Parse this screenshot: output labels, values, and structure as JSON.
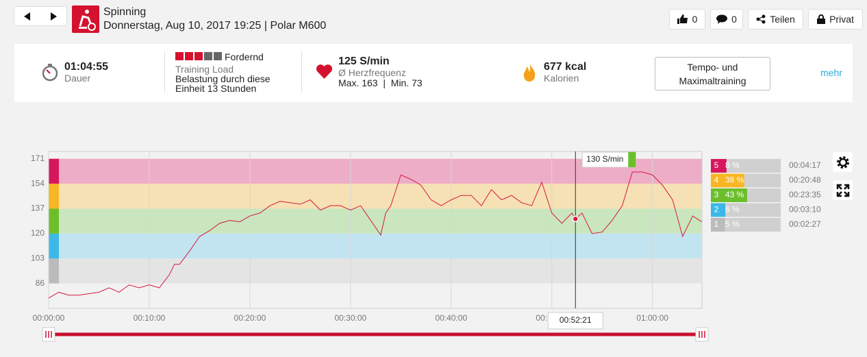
{
  "header": {
    "sport": "Spinning",
    "subtitle": "Donnerstag, Aug 10, 2017 19:25 | Polar M600",
    "likes": "0",
    "comments": "0",
    "share": "Teilen",
    "privacy": "Privat"
  },
  "summary": {
    "duration": "01:04:55",
    "duration_label": "Dauer",
    "load_level": "Fordernd",
    "load_label": "Training Load",
    "load_text": "Belastung durch diese Einheit 13 Stunden",
    "hr_value": "125 S/min",
    "hr_label": "Ø Herzfrequenz",
    "hr_minmax": "Max. 163  |  Min. 73",
    "calories": "677 kcal",
    "calories_label": "Kalorien",
    "benefit": "Tempo- und Maximaltraining",
    "more": "mehr"
  },
  "chart_data": {
    "type": "line",
    "x": [
      0,
      1,
      2,
      3,
      4,
      5,
      6,
      7,
      8,
      9,
      10,
      11,
      12,
      12.5,
      13,
      14,
      15,
      16,
      17,
      18,
      19,
      20,
      21,
      22,
      23,
      24,
      25,
      26,
      27,
      28,
      29,
      30,
      31,
      32,
      33,
      33.5,
      34,
      35,
      36,
      37,
      38,
      39,
      40,
      41,
      42,
      43,
      44,
      45,
      46,
      47,
      48,
      49,
      50,
      51,
      52,
      52.35,
      53,
      54,
      55,
      56,
      57,
      58,
      59,
      60,
      61,
      62,
      63,
      64,
      64.9
    ],
    "series": [
      {
        "name": "Herzfrequenz",
        "color": "#d7173f",
        "values": [
          76,
          80,
          78,
          78,
          79,
          80,
          83,
          80,
          85,
          83,
          85,
          83,
          92,
          99,
          99,
          108,
          118,
          122,
          127,
          129,
          128,
          132,
          134,
          139,
          142,
          141,
          140,
          143,
          136,
          139,
          139,
          136,
          139,
          129,
          119,
          134,
          139,
          160,
          157,
          153,
          143,
          139,
          143,
          146,
          146,
          139,
          150,
          143,
          146,
          141,
          139,
          155,
          134,
          127,
          134,
          130,
          134,
          120,
          121,
          129,
          139,
          162,
          162,
          160,
          153,
          143,
          118,
          132,
          128
        ]
      }
    ],
    "xlim": [
      0,
      64.92
    ],
    "xticks": [
      {
        "value": 0,
        "label": "00:00:00"
      },
      {
        "value": 10,
        "label": "00:10:00"
      },
      {
        "value": 20,
        "label": "00:20:00"
      },
      {
        "value": 30,
        "label": "00:30:00"
      },
      {
        "value": 40,
        "label": "00:40:00"
      },
      {
        "value": 50,
        "label": "00:50:00"
      },
      {
        "value": 60,
        "label": "01:00:00"
      }
    ],
    "ylim": [
      69,
      176
    ],
    "yticks": [
      86,
      103,
      120,
      137,
      154,
      171
    ],
    "zone_colors": [
      "#e4e4e4",
      "#c2e4f0",
      "#c9e6bf",
      "#f6e1b4",
      "#eeadc6"
    ],
    "zone_strip_colors": [
      "#bbbbbb",
      "#3cb8e8",
      "#6cbf2b",
      "#f7b623",
      "#d7175c"
    ],
    "cursor": {
      "x": 52.35,
      "label": "00:52:21",
      "value": 130,
      "value_label": "130 S/min"
    },
    "zone_summary": {
      "zones": [
        "5",
        "4",
        "3",
        "2",
        "1"
      ],
      "values": [
        8,
        38,
        43,
        6,
        5
      ],
      "value_labels": [
        "8 %",
        "38 %",
        "43 %",
        "6 %",
        "5 %"
      ],
      "times": [
        "00:04:17",
        "00:20:48",
        "00:23:35",
        "00:03:10",
        "00:02:27"
      ],
      "colors": [
        "#d7175c",
        "#f7b623",
        "#6cbf2b",
        "#3cb8e8",
        "#bbbbbb"
      ]
    }
  }
}
